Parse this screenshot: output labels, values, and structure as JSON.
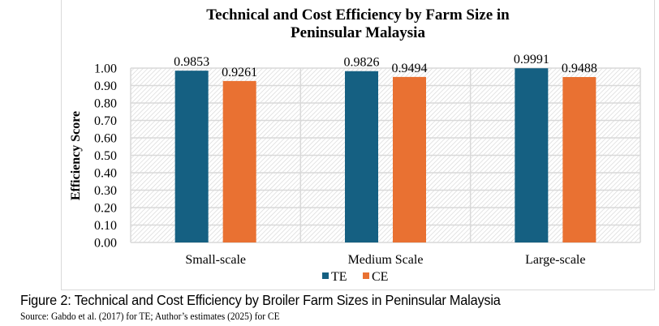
{
  "chart_data": {
    "type": "bar",
    "title": "Technical and Cost Efficiency by Farm Size in Peninsular Malaysia",
    "title_lines": [
      "Technical and Cost Efficiency by Farm Size in",
      "Peninsular Malaysia"
    ],
    "xlabel": "",
    "ylabel": "Efficiency Score",
    "ylim": [
      0,
      1.0
    ],
    "yticks": [
      0.0,
      0.1,
      0.2,
      0.3,
      0.4,
      0.5,
      0.6,
      0.7,
      0.8,
      0.9,
      1.0
    ],
    "ytick_labels": [
      "0.00",
      "0.10",
      "0.20",
      "0.30",
      "0.40",
      "0.50",
      "0.60",
      "0.70",
      "0.80",
      "0.90",
      "1.00"
    ],
    "categories": [
      "Small-scale",
      "Medium Scale",
      "Large-scale"
    ],
    "series": [
      {
        "name": "TE",
        "color": "#156082",
        "values": [
          0.9853,
          0.9826,
          0.9991
        ],
        "labels": [
          "0.9853",
          "0.9826",
          "0.9991"
        ]
      },
      {
        "name": "CE",
        "color": "#E97132",
        "values": [
          0.9261,
          0.9494,
          0.9488
        ],
        "labels": [
          "0.9261",
          "0.9494",
          "0.9488"
        ]
      }
    ],
    "grid": true,
    "legend_position": "bottom-center",
    "plot_background": "diagonal-hatch"
  },
  "caption": {
    "figure": "Figure 2: Technical and Cost Efficiency by Broiler Farm Sizes in Peninsular Malaysia",
    "source": "Source: Gabdo et al. (2017) for TE; Author’s estimates (2025) for CE"
  }
}
